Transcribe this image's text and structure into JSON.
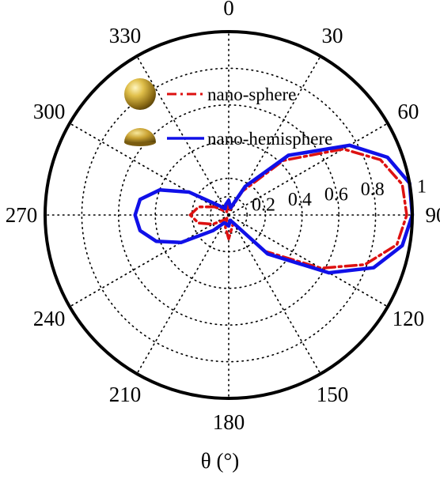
{
  "chart_data": {
    "type": "polar-line",
    "angle_unit": "deg",
    "angle_zero": "top",
    "angle_direction": "clockwise",
    "angle_ticks": [
      0,
      30,
      60,
      90,
      120,
      150,
      180,
      210,
      240,
      270,
      300,
      330
    ],
    "angle_tick_labels": [
      "0",
      "30",
      "60",
      "90",
      "120",
      "150",
      "180",
      "210",
      "240",
      "270",
      "300",
      "330"
    ],
    "radial_ticks": [
      0.2,
      0.4,
      0.6,
      0.8,
      1
    ],
    "radial_tick_labels": [
      "0.2",
      "0.4",
      "0.6",
      "0.8",
      "1"
    ],
    "radial_range": [
      0,
      1
    ],
    "grid": "dotted",
    "xlabel": "θ (°)",
    "legend_position": "top-left",
    "series": [
      {
        "name": "nano-sphere",
        "color": "#dd1111",
        "line_style": "dash-dot",
        "icon": "gold-sphere",
        "points": [
          [
            0,
            0.06
          ],
          [
            15,
            0.03
          ],
          [
            30,
            0.15
          ],
          [
            45,
            0.42
          ],
          [
            60,
            0.72
          ],
          [
            70,
            0.88
          ],
          [
            80,
            0.96
          ],
          [
            90,
            0.97
          ],
          [
            100,
            0.93
          ],
          [
            110,
            0.79
          ],
          [
            120,
            0.58
          ],
          [
            135,
            0.28
          ],
          [
            150,
            0.05
          ],
          [
            165,
            0.07
          ],
          [
            180,
            0.13
          ],
          [
            195,
            0.07
          ],
          [
            210,
            0.02
          ],
          [
            225,
            0.04
          ],
          [
            240,
            0.1
          ],
          [
            255,
            0.17
          ],
          [
            270,
            0.21
          ],
          [
            285,
            0.17
          ],
          [
            300,
            0.09
          ],
          [
            315,
            0.03
          ],
          [
            330,
            0.02
          ],
          [
            345,
            0.04
          ],
          [
            360,
            0.06
          ]
        ]
      },
      {
        "name": "nano-hemisphere",
        "color": "#1010e8",
        "line_style": "solid",
        "icon": "gold-hemisphere",
        "points": [
          [
            0,
            0.08
          ],
          [
            15,
            0.04
          ],
          [
            30,
            0.18
          ],
          [
            45,
            0.46
          ],
          [
            60,
            0.76
          ],
          [
            70,
            0.92
          ],
          [
            80,
            1.0
          ],
          [
            90,
            1.0
          ],
          [
            100,
            0.96
          ],
          [
            110,
            0.84
          ],
          [
            120,
            0.63
          ],
          [
            135,
            0.3
          ],
          [
            150,
            0.05
          ],
          [
            165,
            0.03
          ],
          [
            180,
            0.06
          ],
          [
            195,
            0.05
          ],
          [
            210,
            0.05
          ],
          [
            225,
            0.12
          ],
          [
            240,
            0.3
          ],
          [
            250,
            0.42
          ],
          [
            260,
            0.49
          ],
          [
            270,
            0.51
          ],
          [
            280,
            0.49
          ],
          [
            290,
            0.4
          ],
          [
            300,
            0.25
          ],
          [
            315,
            0.07
          ],
          [
            330,
            0.04
          ],
          [
            345,
            0.06
          ],
          [
            360,
            0.08
          ]
        ]
      }
    ]
  }
}
